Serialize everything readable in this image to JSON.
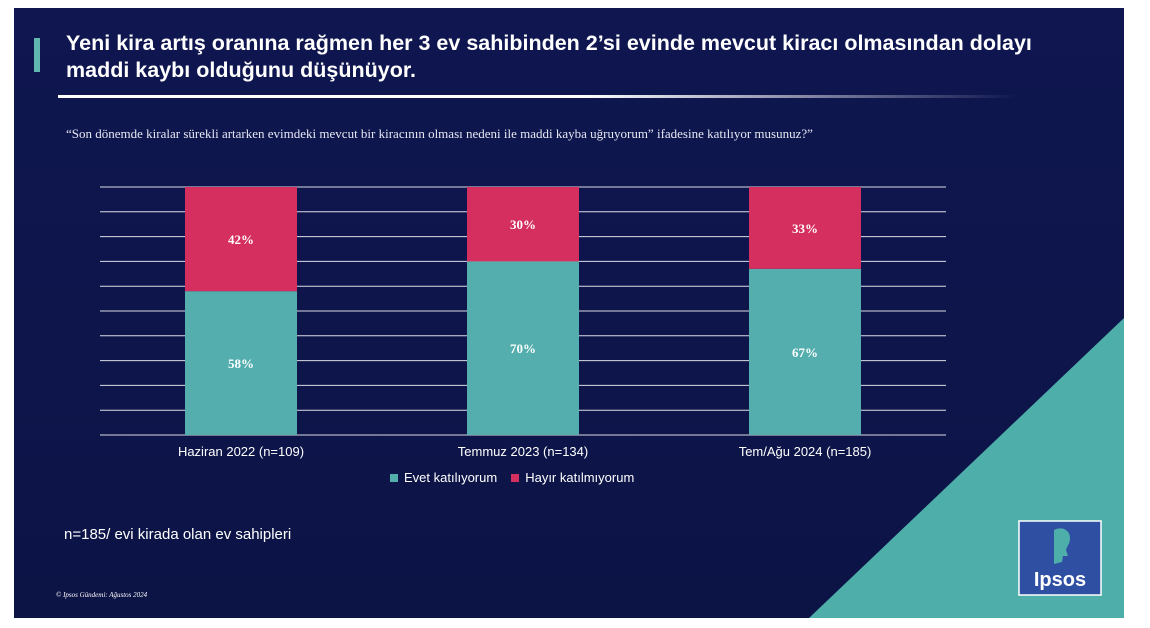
{
  "title": "Yeni kira artış oranına rağmen her 3 ev sahibinden 2’si evinde mevcut kiracı olmasından dolayı maddi kaybı olduğunu düşünüyor.",
  "question": "“Son dönemde kiralar sürekli artarken evimdeki mevcut bir kiracının olması nedeni ile maddi kayba uğruyorum” ifadesine katılıyor musunuz?”",
  "footnote": "n=185/ evi kirada olan ev sahipleri",
  "copyright": "© Ipsos Gündemi: Ağustos 2024",
  "logo_text": "Ipsos",
  "colors": {
    "background": "#0f1650",
    "evet": "#55aeae",
    "hayir": "#d42f5e",
    "accent": "#5fb7b0"
  },
  "chart_data": {
    "type": "bar",
    "stacked": true,
    "categories": [
      "Haziran 2022 (n=109)",
      "Temmuz 2023 (n=134)",
      "Tem/Ağu 2024 (n=185)"
    ],
    "series": [
      {
        "name": "Evet katılıyorum",
        "values": [
          58,
          70,
          67
        ],
        "labels": [
          "58%",
          "70%",
          "67%"
        ]
      },
      {
        "name": "Hayır katılmıyorum",
        "values": [
          42,
          30,
          33
        ],
        "labels": [
          "42%",
          "30%",
          "33%"
        ]
      }
    ],
    "ylim": [
      0,
      100
    ],
    "gridlines": 10,
    "legend_position": "bottom",
    "xlabel": "",
    "ylabel": ""
  }
}
